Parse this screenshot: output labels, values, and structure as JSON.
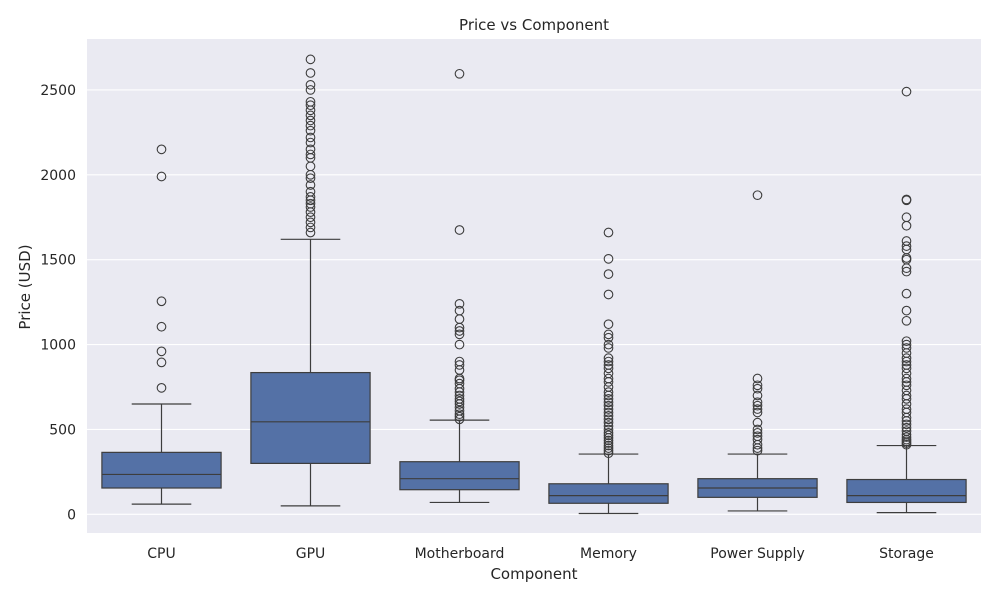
{
  "chart_data": {
    "type": "box",
    "title": "Price vs Component",
    "xlabel": "Component",
    "ylabel": "Price (USD)",
    "ylim": [
      -110,
      2800
    ],
    "yticks": [
      0,
      500,
      1000,
      1500,
      2000,
      2500
    ],
    "grid": true,
    "colors": {
      "background": "#eaeaf2",
      "grid": "#ffffff",
      "box_fill": "#5471a6",
      "line": "#3d3d3d"
    },
    "categories": [
      "CPU",
      "GPU",
      "Motherboard",
      "Memory",
      "Power Supply",
      "Storage"
    ],
    "boxes": [
      {
        "category": "CPU",
        "whisker_low": 60,
        "q1": 155,
        "median": 235,
        "q3": 365,
        "whisker_high": 650,
        "outliers": [
          745,
          895,
          960,
          1105,
          1255,
          1990,
          2150
        ]
      },
      {
        "category": "GPU",
        "whisker_low": 50,
        "q1": 300,
        "median": 545,
        "q3": 835,
        "whisker_high": 1620,
        "outliers": [
          1660,
          1690,
          1720,
          1750,
          1780,
          1810,
          1830,
          1850,
          1870,
          1900,
          1940,
          1980,
          2000,
          2050,
          2100,
          2120,
          2150,
          2190,
          2220,
          2260,
          2290,
          2320,
          2350,
          2380,
          2410,
          2430,
          2500,
          2530,
          2600,
          2680
        ]
      },
      {
        "category": "Motherboard",
        "whisker_low": 70,
        "q1": 145,
        "median": 210,
        "q3": 310,
        "whisker_high": 555,
        "outliers": [
          560,
          575,
          590,
          610,
          630,
          650,
          665,
          680,
          700,
          720,
          740,
          770,
          790,
          800,
          850,
          880,
          900,
          1000,
          1060,
          1080,
          1100,
          1150,
          1200,
          1240,
          1675,
          2595
        ]
      },
      {
        "category": "Memory",
        "whisker_low": 5,
        "q1": 65,
        "median": 110,
        "q3": 180,
        "whisker_high": 355,
        "outliers": [
          360,
          375,
          390,
          405,
          420,
          435,
          450,
          465,
          480,
          500,
          520,
          540,
          560,
          580,
          600,
          620,
          640,
          660,
          680,
          700,
          720,
          750,
          780,
          800,
          830,
          860,
          880,
          900,
          920,
          980,
          1000,
          1040,
          1060,
          1120,
          1295,
          1415,
          1505,
          1660
        ]
      },
      {
        "category": "Power Supply",
        "whisker_low": 20,
        "q1": 100,
        "median": 155,
        "q3": 210,
        "whisker_high": 355,
        "outliers": [
          375,
          390,
          410,
          440,
          460,
          480,
          500,
          540,
          600,
          620,
          640,
          660,
          700,
          740,
          760,
          800,
          1880
        ]
      },
      {
        "category": "Storage",
        "whisker_low": 10,
        "q1": 70,
        "median": 110,
        "q3": 205,
        "whisker_high": 405,
        "outliers": [
          410,
          420,
          430,
          440,
          455,
          470,
          490,
          510,
          530,
          550,
          570,
          600,
          620,
          650,
          680,
          700,
          730,
          760,
          780,
          800,
          830,
          860,
          880,
          900,
          920,
          950,
          980,
          1000,
          1020,
          1140,
          1200,
          1300,
          1430,
          1450,
          1500,
          1510,
          1560,
          1580,
          1610,
          1700,
          1750,
          1850,
          1855,
          2490
        ]
      }
    ]
  }
}
